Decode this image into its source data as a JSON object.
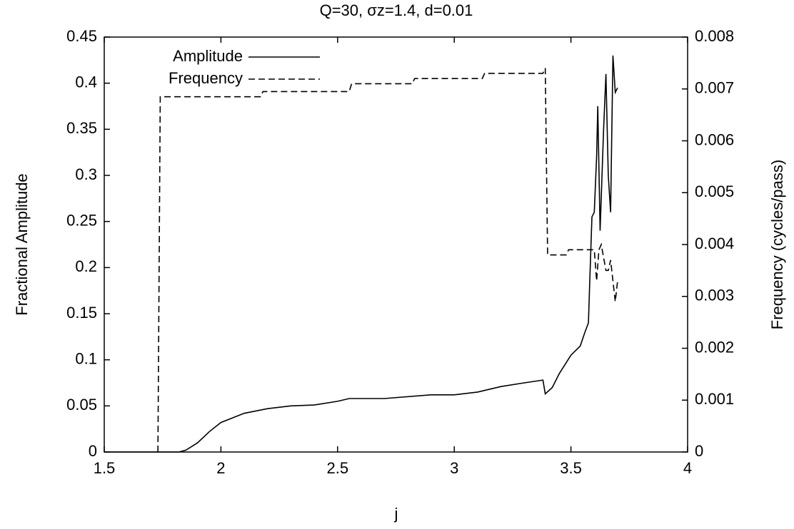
{
  "chart_data": {
    "type": "line",
    "title": "Q=30, σz=1.4, d=0.01",
    "x_label": "j",
    "y_label": "Fractional Amplitude",
    "y2_label": "Frequency (cycles/pass)",
    "xlim": [
      1.5,
      4
    ],
    "xticks": [
      1.5,
      2,
      2.5,
      3,
      3.5,
      4
    ],
    "ylim": [
      0,
      0.45
    ],
    "yticks": [
      0,
      0.05,
      0.1,
      0.15,
      0.2,
      0.25,
      0.3,
      0.35,
      0.4,
      0.45
    ],
    "y2lim": [
      0,
      0.008
    ],
    "y2ticks": [
      0,
      0.001,
      0.002,
      0.003,
      0.004,
      0.005,
      0.006,
      0.007,
      0.008
    ],
    "grid": false,
    "legend": "upper left",
    "series": [
      {
        "name": "Amplitude",
        "color": "#000000",
        "linestyle": "solid",
        "x": [
          1.5,
          1.82,
          1.85,
          1.9,
          1.95,
          2.0,
          2.1,
          2.2,
          2.3,
          2.4,
          2.5,
          2.55,
          2.7,
          2.9,
          3.0,
          3.1,
          3.2,
          3.3,
          3.38,
          3.39,
          3.42,
          3.45,
          3.5,
          3.54,
          3.56,
          3.575,
          3.58,
          3.59,
          3.6,
          3.61,
          3.615,
          3.625,
          3.64,
          3.65,
          3.66,
          3.67,
          3.68,
          3.69,
          3.7
        ],
        "values": [
          0,
          0,
          0.002,
          0.01,
          0.022,
          0.032,
          0.042,
          0.047,
          0.05,
          0.051,
          0.055,
          0.058,
          0.058,
          0.062,
          0.062,
          0.065,
          0.071,
          0.075,
          0.078,
          0.063,
          0.07,
          0.085,
          0.105,
          0.115,
          0.13,
          0.14,
          0.18,
          0.255,
          0.26,
          0.32,
          0.375,
          0.24,
          0.35,
          0.41,
          0.3,
          0.26,
          0.43,
          0.39,
          0.395
        ]
      },
      {
        "name": "Frequency",
        "color": "#000000",
        "linestyle": "dashed",
        "axis": "y2",
        "x": [
          1.73,
          1.74,
          2.17,
          2.18,
          2.55,
          2.56,
          2.82,
          2.83,
          3.12,
          3.13,
          3.38,
          3.39,
          3.4,
          3.48,
          3.49,
          3.6,
          3.61,
          3.62,
          3.63,
          3.65,
          3.66,
          3.67,
          3.68,
          3.69,
          3.7
        ],
        "values": [
          0,
          0.00685,
          0.00685,
          0.00695,
          0.00695,
          0.0071,
          0.0071,
          0.0072,
          0.0072,
          0.0073,
          0.0073,
          0.0074,
          0.0038,
          0.0038,
          0.0039,
          0.0039,
          0.0033,
          0.0039,
          0.004,
          0.0035,
          0.0035,
          0.0037,
          0.0033,
          0.0029,
          0.0033
        ]
      }
    ]
  }
}
